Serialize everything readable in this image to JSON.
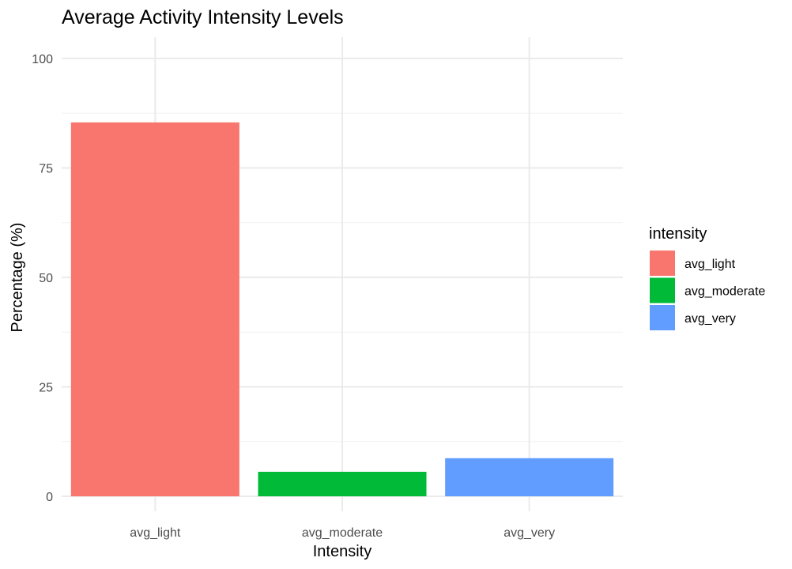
{
  "chart_data": {
    "type": "bar",
    "title": "Average Activity Intensity Levels",
    "xlabel": "Intensity",
    "ylabel": "Percentage (%)",
    "categories": [
      "avg_light",
      "avg_moderate",
      "avg_very"
    ],
    "values": [
      85.4,
      5.6,
      8.7
    ],
    "colors": [
      "#F8766D",
      "#00BA38",
      "#619CFF"
    ],
    "ylim": [
      0,
      100
    ],
    "yticks": [
      0,
      25,
      50,
      75,
      100
    ],
    "grid": true,
    "legend": {
      "title": "intensity",
      "position": "right",
      "entries": [
        "avg_light",
        "avg_moderate",
        "avg_very"
      ]
    }
  }
}
